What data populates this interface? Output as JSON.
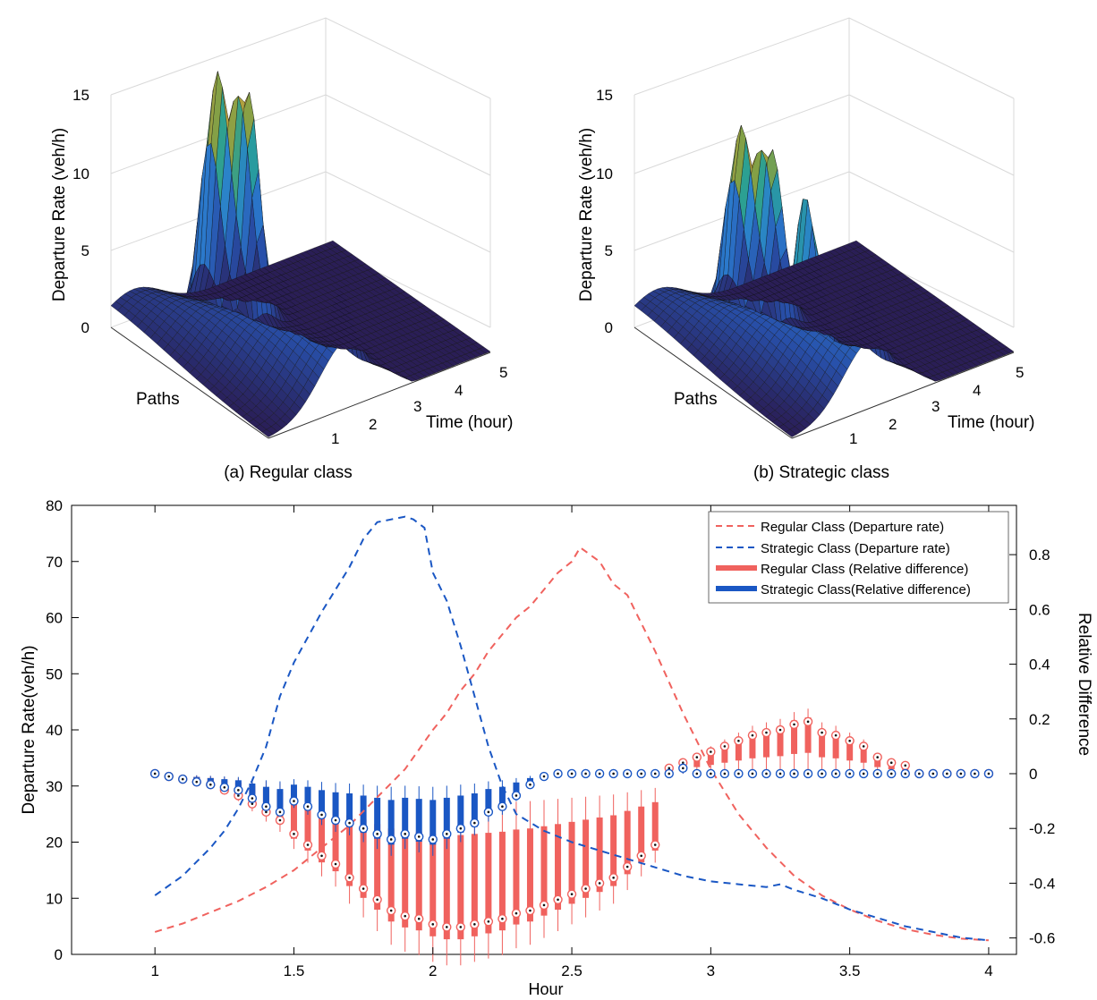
{
  "colors": {
    "regular": "#f0625e",
    "strategic": "#1a57c4",
    "surface_low": "#2a1d55",
    "surface_mid": "#2b7fd0",
    "surface_high": "#d6a23a"
  },
  "surface_a": {
    "ylabel": "Departure Rate (veh/h)",
    "z_ticks": [
      "0",
      "5",
      "10",
      "15"
    ],
    "paths_label": "Paths",
    "time_label": "Time (hour)",
    "time_ticks": [
      "1",
      "2",
      "3",
      "4",
      "5"
    ],
    "caption": "(a) Regular class",
    "peaks": [
      15.5,
      15.3,
      5.5,
      5.0
    ]
  },
  "surface_b": {
    "ylabel": "Departure Rate (veh/h)",
    "z_ticks": [
      "0",
      "5",
      "10",
      "15"
    ],
    "paths_label": "Paths",
    "time_label": "Time (hour)",
    "time_ticks": [
      "1",
      "2",
      "3",
      "4",
      "5"
    ],
    "caption": "(b) Strategic class",
    "peaks": [
      12.2,
      11.5,
      10.5,
      5.5
    ]
  },
  "chart_data": {
    "type": "line",
    "xlabel": "Hour",
    "ylabel": "Departure Rate(veh/h)",
    "y2label": "Relative Difference",
    "xlim": [
      0.7,
      4.1
    ],
    "ylim": [
      0,
      80
    ],
    "y2lim": [
      -0.66,
      0.98
    ],
    "x_ticks": [
      "1",
      "1.5",
      "2",
      "2.5",
      "3",
      "3.5",
      "4"
    ],
    "y_ticks": [
      "0",
      "10",
      "20",
      "30",
      "40",
      "50",
      "60",
      "70",
      "80"
    ],
    "y2_ticks": [
      "-0.6",
      "-0.4",
      "-0.2",
      "0",
      "0.2",
      "0.4",
      "0.6",
      "0.8"
    ],
    "legend": [
      {
        "label": "Regular Class (Departure rate)",
        "style": "dashed",
        "color": "#f0625e"
      },
      {
        "label": "Strategic Class (Departure rate)",
        "style": "dashed",
        "color": "#1a57c4"
      },
      {
        "label": "Regular Class (Relative difference)",
        "style": "thick",
        "color": "#f0625e"
      },
      {
        "label": "Strategic Class(Relative difference)",
        "style": "thick",
        "color": "#1a57c4"
      }
    ],
    "series": [
      {
        "name": "Regular Class (Departure rate)",
        "x": [
          1.0,
          1.1,
          1.2,
          1.3,
          1.4,
          1.5,
          1.6,
          1.7,
          1.8,
          1.9,
          2.0,
          2.05,
          2.1,
          2.15,
          2.2,
          2.25,
          2.3,
          2.35,
          2.4,
          2.45,
          2.5,
          2.53,
          2.6,
          2.65,
          2.7,
          2.8,
          2.9,
          3.0,
          3.1,
          3.2,
          3.3,
          3.4,
          3.5,
          3.6,
          3.7,
          3.8,
          3.9,
          4.0
        ],
        "values": [
          4,
          5.5,
          7.5,
          9.5,
          12,
          15,
          19,
          23,
          28,
          33,
          40,
          43,
          47,
          50,
          54,
          57,
          60,
          62,
          65,
          68,
          70,
          72.5,
          70,
          66,
          64,
          54,
          43,
          33,
          25,
          19,
          14,
          10.5,
          8,
          6,
          4.5,
          3.5,
          2.8,
          2.5
        ]
      },
      {
        "name": "Strategic Class (Departure rate)",
        "x": [
          1.0,
          1.1,
          1.2,
          1.25,
          1.3,
          1.35,
          1.4,
          1.45,
          1.5,
          1.6,
          1.7,
          1.75,
          1.8,
          1.85,
          1.9,
          1.93,
          1.97,
          2.0,
          2.05,
          2.1,
          2.15,
          2.2,
          2.25,
          2.3,
          2.4,
          2.5,
          2.6,
          2.7,
          2.8,
          2.9,
          3.0,
          3.1,
          3.2,
          3.25,
          3.3,
          3.4,
          3.5,
          3.6,
          3.7,
          3.8,
          3.9,
          4.0
        ],
        "values": [
          10.5,
          14,
          19,
          22,
          26,
          31,
          37,
          46,
          52,
          61,
          69,
          74,
          77,
          77.5,
          78,
          77.5,
          76,
          68,
          63,
          55,
          46,
          37,
          30,
          25,
          22,
          20,
          18.5,
          17,
          15.5,
          14,
          13,
          12.5,
          12,
          12.5,
          11.5,
          10,
          8,
          6.5,
          5,
          4,
          3,
          2.5
        ]
      },
      {
        "name": "Regular Class (Relative difference)",
        "x": [
          1.0,
          1.05,
          1.1,
          1.15,
          1.2,
          1.25,
          1.3,
          1.35,
          1.4,
          1.45,
          1.5,
          1.55,
          1.6,
          1.65,
          1.7,
          1.75,
          1.8,
          1.85,
          1.9,
          1.95,
          2.0,
          2.05,
          2.1,
          2.15,
          2.2,
          2.25,
          2.3,
          2.35,
          2.4,
          2.45,
          2.5,
          2.55,
          2.6,
          2.65,
          2.7,
          2.75,
          2.8,
          2.85,
          2.9,
          2.95,
          3.0,
          3.05,
          3.1,
          3.15,
          3.2,
          3.25,
          3.3,
          3.35,
          3.4,
          3.45,
          3.5,
          3.55,
          3.6,
          3.65,
          3.7,
          3.75,
          3.8,
          3.85,
          3.9,
          3.95,
          4.0
        ],
        "values": [
          0.0,
          -0.01,
          -0.02,
          -0.03,
          -0.04,
          -0.06,
          -0.08,
          -0.11,
          -0.14,
          -0.17,
          -0.22,
          -0.26,
          -0.3,
          -0.33,
          -0.38,
          -0.42,
          -0.46,
          -0.5,
          -0.52,
          -0.53,
          -0.55,
          -0.56,
          -0.56,
          -0.55,
          -0.54,
          -0.53,
          -0.51,
          -0.5,
          -0.48,
          -0.46,
          -0.44,
          -0.42,
          -0.4,
          -0.38,
          -0.34,
          -0.3,
          -0.26,
          0.02,
          0.04,
          0.06,
          0.08,
          0.1,
          0.12,
          0.14,
          0.15,
          0.16,
          0.18,
          0.19,
          0.15,
          0.14,
          0.12,
          0.1,
          0.06,
          0.04,
          0.03,
          0.0,
          0.0,
          0.0,
          0.0,
          0.0,
          0.0
        ]
      },
      {
        "name": "Strategic Class(Relative difference)",
        "x": [
          1.0,
          1.05,
          1.1,
          1.15,
          1.2,
          1.25,
          1.3,
          1.35,
          1.4,
          1.45,
          1.5,
          1.55,
          1.6,
          1.65,
          1.7,
          1.75,
          1.8,
          1.85,
          1.9,
          1.95,
          2.0,
          2.05,
          2.1,
          2.15,
          2.2,
          2.25,
          2.3,
          2.35,
          2.4,
          2.45,
          2.5,
          2.55,
          2.6,
          2.65,
          2.7,
          2.75,
          2.8,
          2.85,
          2.9,
          2.95,
          3.0,
          3.05,
          3.1,
          3.15,
          3.2,
          3.25,
          3.3,
          3.35,
          3.4,
          3.45,
          3.5,
          3.55,
          3.6,
          3.65,
          3.7,
          3.75,
          3.8,
          3.85,
          3.9,
          3.95,
          4.0
        ],
        "values": [
          0.0,
          -0.01,
          -0.02,
          -0.03,
          -0.04,
          -0.05,
          -0.06,
          -0.09,
          -0.12,
          -0.14,
          -0.1,
          -0.12,
          -0.15,
          -0.17,
          -0.18,
          -0.2,
          -0.22,
          -0.24,
          -0.22,
          -0.23,
          -0.24,
          -0.22,
          -0.2,
          -0.18,
          -0.14,
          -0.12,
          -0.08,
          -0.04,
          -0.01,
          0.0,
          0.0,
          0.0,
          0.0,
          0.0,
          0.0,
          0.0,
          0.0,
          0.0,
          0.02,
          0.0,
          0.0,
          0.0,
          0.0,
          0.0,
          0.0,
          0.0,
          0.0,
          0.0,
          0.0,
          0.0,
          0.0,
          0.0,
          0.0,
          0.0,
          0.0,
          0.0,
          0.0,
          0.0,
          0.0,
          0.0,
          0.0
        ]
      }
    ]
  }
}
